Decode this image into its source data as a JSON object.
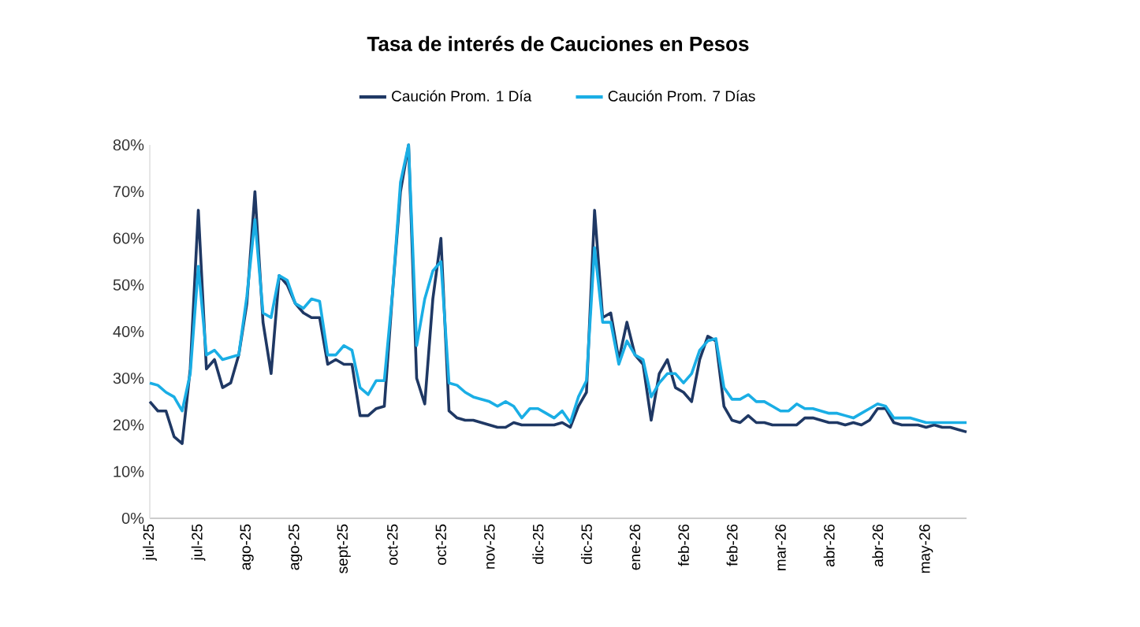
{
  "chart_data": {
    "type": "line",
    "title": "Tasa de interés de Cauciones en Pesos",
    "categories": [
      "jul-25",
      null,
      null,
      null,
      null,
      null,
      "jul-25",
      null,
      null,
      null,
      null,
      null,
      "ago-25",
      null,
      null,
      null,
      null,
      null,
      "ago-25",
      null,
      null,
      null,
      null,
      null,
      "sept-25",
      null,
      null,
      null,
      null,
      null,
      "oct-25",
      null,
      null,
      null,
      null,
      null,
      "oct-25",
      null,
      null,
      null,
      null,
      null,
      "nov-25",
      null,
      null,
      null,
      null,
      null,
      "dic-25",
      null,
      null,
      null,
      null,
      null,
      "dic-25",
      null,
      null,
      null,
      null,
      null,
      "ene-26",
      null,
      null,
      null,
      null,
      null,
      "feb-26",
      null,
      null,
      null,
      null,
      null,
      "feb-26",
      null,
      null,
      null,
      null,
      null,
      "mar-26",
      null,
      null,
      null,
      null,
      null,
      "abr-26",
      null,
      null,
      null,
      null,
      null,
      "abr-26",
      null,
      null,
      null,
      null,
      null,
      "may-26",
      null,
      null,
      null,
      null,
      null
    ],
    "series": [
      {
        "name": "Caución Prom. 1 Día",
        "color": "#1f3864",
        "values": [
          25,
          23,
          23,
          17.5,
          16,
          32,
          66,
          32,
          34,
          28,
          29,
          35,
          46,
          70,
          42,
          31,
          52,
          50,
          46,
          44,
          43,
          43,
          33,
          34,
          33,
          33,
          22,
          22,
          23.5,
          24,
          48,
          70,
          80,
          30,
          24.5,
          47,
          60,
          23,
          21.5,
          21,
          21,
          20.5,
          20,
          19.5,
          19.5,
          20.5,
          20,
          20,
          20,
          20,
          20,
          20.5,
          19.5,
          24,
          27,
          66,
          43,
          44,
          34,
          42,
          35,
          33,
          21,
          31,
          34,
          28,
          27,
          25,
          34,
          39,
          38,
          24,
          21,
          20.5,
          22,
          20.5,
          20.5,
          20,
          20,
          20,
          20,
          21.5,
          21.5,
          21,
          20.5,
          20.5,
          20,
          20.5,
          20,
          21,
          23.5,
          23.5,
          20.5,
          20,
          20,
          20,
          19.5,
          20,
          19.5,
          19.5,
          19,
          18.5
        ]
      },
      {
        "name": "Caución Prom. 7 Días",
        "color": "#1aaee5",
        "values": [
          29,
          28.5,
          27,
          26,
          23,
          31,
          54,
          35,
          36,
          34,
          34.5,
          35,
          47.5,
          64,
          44,
          43,
          52,
          51,
          46,
          45,
          47,
          46.5,
          35,
          35,
          37,
          36,
          28,
          26.5,
          29.5,
          29.5,
          48,
          72,
          80,
          37,
          47,
          53,
          55,
          29,
          28.5,
          27,
          26,
          25.5,
          25,
          24,
          25,
          24,
          21.5,
          23.5,
          23.5,
          22.5,
          21.5,
          23,
          20.5,
          26,
          29.5,
          58,
          42,
          42,
          33,
          38,
          35,
          34,
          26,
          29,
          31,
          31,
          29,
          31,
          36,
          38,
          38.5,
          28,
          25.5,
          25.5,
          26.5,
          25,
          25,
          24,
          23,
          23,
          24.5,
          23.5,
          23.5,
          23,
          22.5,
          22.5,
          22,
          21.5,
          22.5,
          23.5,
          24.5,
          24,
          21.5,
          21.5,
          21.5,
          21,
          20.5,
          20.5,
          20.5,
          20.5,
          20.5,
          20.5
        ]
      }
    ],
    "ylim": [
      0,
      80
    ],
    "yticks": [
      {
        "value": 0,
        "label": "0%"
      },
      {
        "value": 10,
        "label": "10%"
      },
      {
        "value": 20,
        "label": "20%"
      },
      {
        "value": 30,
        "label": "30%"
      },
      {
        "value": 40,
        "label": "40%"
      },
      {
        "value": 50,
        "label": "50%"
      },
      {
        "value": 60,
        "label": "60%"
      },
      {
        "value": 70,
        "label": "70%"
      },
      {
        "value": 80,
        "label": "80%"
      }
    ],
    "legend": "top",
    "marker": "none",
    "line_style": "solid"
  }
}
